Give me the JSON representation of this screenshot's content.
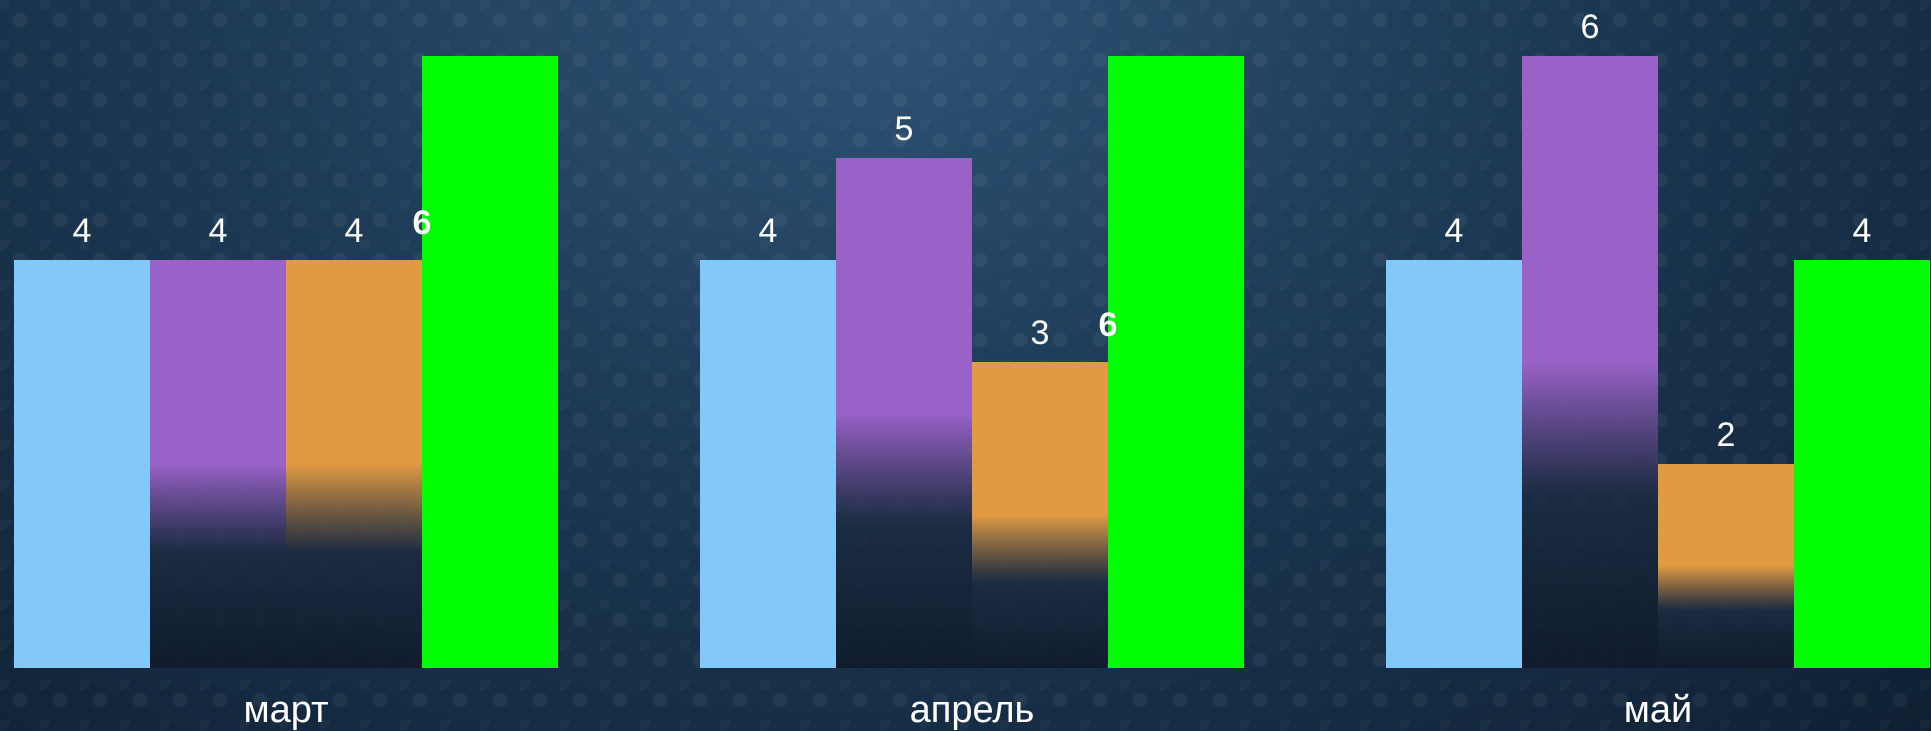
{
  "chart_data": {
    "type": "bar",
    "categories": [
      "март",
      "апрель",
      "май"
    ],
    "series": [
      {
        "values": [
          4,
          4,
          4
        ],
        "color": "#82c8fa"
      },
      {
        "values": [
          4,
          5,
          6
        ],
        "color": "#9a62c8"
      },
      {
        "values": [
          4,
          3,
          2
        ],
        "color": "#e09a42"
      },
      {
        "values": [
          6,
          6,
          4
        ],
        "color": "#00ff00"
      }
    ],
    "title": "",
    "xlabel": "",
    "ylabel": "",
    "ylim": [
      0,
      6
    ],
    "grid": false,
    "legend": "none",
    "data_labels": true
  }
}
